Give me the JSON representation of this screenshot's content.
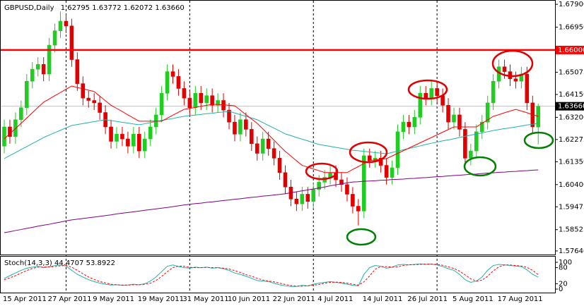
{
  "chart_data": [
    {
      "type": "candlestick",
      "title": "GBPUSD,Daily",
      "title_values": [
        "1.62795",
        "1.63772",
        "1.62072",
        "1.63660"
      ],
      "categories": [
        "15 Apr 2011",
        null,
        null,
        null,
        null,
        null,
        null,
        null,
        "27 Apr 2011",
        null,
        null,
        null,
        null,
        null,
        null,
        null,
        "9 May 2011",
        null,
        null,
        null,
        null,
        null,
        null,
        null,
        "19 May 2011",
        null,
        null,
        null,
        null,
        null,
        null,
        null,
        "31 May 2011",
        null,
        null,
        null,
        null,
        null,
        null,
        null,
        "10 Jun 2011",
        null,
        null,
        null,
        null,
        null,
        null,
        null,
        "22 Jun 2011",
        null,
        null,
        null,
        null,
        null,
        null,
        null,
        "4 Jul 2011",
        null,
        null,
        null,
        null,
        null,
        null,
        null,
        "14 Jul 2011",
        null,
        null,
        null,
        null,
        null,
        null,
        null,
        "26 Jul 2011",
        null,
        null,
        null,
        null,
        null,
        null,
        null,
        "5 Aug 2011",
        null,
        null,
        null,
        null,
        null,
        null,
        null,
        "17 Aug 2011",
        null,
        null,
        null,
        null,
        null,
        null,
        null
      ],
      "open": [
        1.62,
        1.628,
        1.624,
        1.631,
        1.636,
        1.647,
        1.652,
        1.654,
        1.65,
        1.662,
        1.668,
        1.672,
        1.67,
        1.656,
        1.646,
        1.64,
        1.639,
        1.638,
        1.634,
        1.628,
        1.622,
        1.625,
        1.623,
        1.62,
        1.625,
        1.618,
        1.623,
        1.628,
        1.633,
        1.642,
        1.651,
        1.649,
        1.644,
        1.64,
        1.636,
        1.642,
        1.638,
        1.641,
        1.637,
        1.639,
        1.635,
        1.63,
        1.625,
        1.631,
        1.627,
        1.621,
        1.617,
        1.623,
        1.619,
        1.615,
        1.609,
        1.603,
        1.598,
        1.596,
        1.6,
        1.597,
        1.602,
        1.605,
        1.607,
        1.609,
        1.606,
        1.604,
        1.6,
        1.595,
        1.593,
        1.616,
        1.614,
        1.615,
        1.612,
        1.607,
        1.611,
        1.626,
        1.63,
        1.628,
        1.632,
        1.642,
        1.64,
        1.644,
        1.641,
        1.637,
        1.63,
        1.633,
        1.627,
        1.615,
        1.618,
        1.626,
        1.63,
        1.638,
        1.647,
        1.653,
        1.651,
        1.648,
        1.647,
        1.65,
        1.638,
        1.62795
      ],
      "high": [
        1.631,
        1.631,
        1.634,
        1.639,
        1.65,
        1.655,
        1.657,
        1.657,
        1.665,
        1.671,
        1.676,
        1.675,
        1.673,
        1.659,
        1.649,
        1.643,
        1.642,
        1.641,
        1.637,
        1.631,
        1.628,
        1.628,
        1.626,
        1.628,
        1.628,
        1.626,
        1.631,
        1.636,
        1.645,
        1.654,
        1.654,
        1.652,
        1.647,
        1.643,
        1.645,
        1.645,
        1.644,
        1.644,
        1.642,
        1.642,
        1.638,
        1.633,
        1.634,
        1.634,
        1.63,
        1.624,
        1.626,
        1.626,
        1.622,
        1.618,
        1.612,
        1.606,
        1.601,
        1.603,
        1.603,
        1.605,
        1.608,
        1.61,
        1.612,
        1.612,
        1.609,
        1.607,
        1.603,
        1.598,
        1.619,
        1.619,
        1.618,
        1.618,
        1.615,
        1.614,
        1.629,
        1.633,
        1.633,
        1.635,
        1.645,
        1.645,
        1.647,
        1.647,
        1.644,
        1.64,
        1.636,
        1.636,
        1.63,
        1.621,
        1.629,
        1.633,
        1.641,
        1.65,
        1.656,
        1.656,
        1.654,
        1.651,
        1.653,
        1.653,
        1.641,
        1.63772
      ],
      "low": [
        1.617,
        1.621,
        1.621,
        1.628,
        1.633,
        1.644,
        1.649,
        1.647,
        1.647,
        1.659,
        1.665,
        1.667,
        1.653,
        1.643,
        1.637,
        1.636,
        1.635,
        1.631,
        1.625,
        1.619,
        1.619,
        1.62,
        1.617,
        1.617,
        1.615,
        1.615,
        1.62,
        1.625,
        1.63,
        1.639,
        1.646,
        1.641,
        1.637,
        1.633,
        1.633,
        1.635,
        1.635,
        1.634,
        1.634,
        1.632,
        1.627,
        1.622,
        1.622,
        1.624,
        1.618,
        1.614,
        1.614,
        1.616,
        1.612,
        1.606,
        1.6,
        1.595,
        1.593,
        1.593,
        1.594,
        1.594,
        1.599,
        1.602,
        1.604,
        1.603,
        1.601,
        1.597,
        1.592,
        1.587,
        1.59,
        1.611,
        1.611,
        1.609,
        1.604,
        1.604,
        1.608,
        1.623,
        1.625,
        1.625,
        1.629,
        1.637,
        1.637,
        1.638,
        1.634,
        1.627,
        1.627,
        1.624,
        1.612,
        1.612,
        1.615,
        1.623,
        1.627,
        1.635,
        1.644,
        1.648,
        1.645,
        1.644,
        1.644,
        1.635,
        1.625,
        1.62072
      ],
      "close": [
        1.628,
        1.624,
        1.631,
        1.636,
        1.647,
        1.652,
        1.654,
        1.65,
        1.662,
        1.668,
        1.672,
        1.67,
        1.656,
        1.646,
        1.64,
        1.639,
        1.638,
        1.634,
        1.628,
        1.622,
        1.625,
        1.623,
        1.62,
        1.625,
        1.618,
        1.623,
        1.628,
        1.633,
        1.642,
        1.651,
        1.649,
        1.644,
        1.64,
        1.636,
        1.642,
        1.638,
        1.641,
        1.637,
        1.639,
        1.635,
        1.63,
        1.625,
        1.631,
        1.627,
        1.621,
        1.617,
        1.623,
        1.619,
        1.615,
        1.609,
        1.603,
        1.598,
        1.596,
        1.6,
        1.597,
        1.602,
        1.605,
        1.607,
        1.609,
        1.606,
        1.604,
        1.6,
        1.595,
        1.593,
        1.616,
        1.614,
        1.615,
        1.612,
        1.607,
        1.611,
        1.626,
        1.63,
        1.628,
        1.632,
        1.642,
        1.64,
        1.644,
        1.641,
        1.637,
        1.63,
        1.633,
        1.627,
        1.615,
        1.618,
        1.626,
        1.63,
        1.638,
        1.647,
        1.653,
        1.651,
        1.648,
        1.647,
        1.65,
        1.638,
        1.628,
        1.6366
      ],
      "up_color": "#22cc22",
      "down_color": "#e00000",
      "lines": [
        {
          "color": "#800080",
          "values": [
            1.584,
            1.5844,
            1.5849,
            1.5853,
            1.5858,
            1.5862,
            1.5867,
            1.5871,
            1.5875,
            1.588,
            1.5884,
            1.5889,
            1.5893,
            1.5896,
            1.5899,
            1.5902,
            1.5905,
            1.5908,
            1.5911,
            1.5914,
            1.5918,
            1.5921,
            1.5924,
            1.5927,
            1.593,
            1.5933,
            1.5936,
            1.5939,
            1.5942,
            1.5945,
            1.5948,
            1.5952,
            1.5955,
            1.5958,
            1.5961,
            1.5963,
            1.5966,
            1.5968,
            1.5971,
            1.5974,
            1.5976,
            1.5979,
            1.5981,
            1.5984,
            1.5987,
            1.5989,
            1.5992,
            1.5994,
            1.5997,
            1.5999,
            1.6002,
            1.6006,
            1.601,
            1.6014,
            1.6018,
            1.6022,
            1.6026,
            1.603,
            1.6035,
            1.6039,
            1.6043,
            1.6047,
            1.6051,
            1.6052,
            1.6054,
            1.6055,
            1.6056,
            1.6058,
            1.6059,
            1.6061,
            1.6062,
            1.6063,
            1.6065,
            1.6066,
            1.6068,
            1.6069,
            1.6071,
            1.6073,
            1.6074,
            1.6076,
            1.6078,
            1.6079,
            1.6081,
            1.6083,
            1.6084,
            1.6086,
            1.6088,
            1.6089,
            1.6091,
            1.6092,
            1.6094,
            1.6095,
            1.6097,
            1.6098,
            1.61,
            1.6101
          ]
        },
        {
          "color": "#20b2aa",
          "values": [
            1.6148,
            1.6161,
            1.6173,
            1.6186,
            1.6198,
            1.6211,
            1.6223,
            1.6236,
            1.6246,
            1.6256,
            1.6266,
            1.6276,
            1.6286,
            1.629,
            1.6294,
            1.6298,
            1.6302,
            1.6306,
            1.631,
            1.6306,
            1.6303,
            1.6299,
            1.6296,
            1.6292,
            1.6289,
            1.6293,
            1.6298,
            1.6302,
            1.6307,
            1.6311,
            1.6315,
            1.632,
            1.6324,
            1.6327,
            1.6329,
            1.6332,
            1.6335,
            1.6337,
            1.634,
            1.6342,
            1.6345,
            1.6338,
            1.6331,
            1.6324,
            1.6317,
            1.631,
            1.6298,
            1.6286,
            1.6275,
            1.6263,
            1.6251,
            1.6244,
            1.6236,
            1.6229,
            1.6222,
            1.6214,
            1.6207,
            1.6203,
            1.6199,
            1.6195,
            1.6191,
            1.6187,
            1.6183,
            1.6181,
            1.6178,
            1.6176,
            1.6173,
            1.6171,
            1.6168,
            1.6174,
            1.6179,
            1.6185,
            1.619,
            1.6196,
            1.6201,
            1.6207,
            1.6212,
            1.6217,
            1.6222,
            1.6226,
            1.6231,
            1.6236,
            1.6241,
            1.6246,
            1.625,
            1.6255,
            1.626,
            1.6265,
            1.6269,
            1.6273,
            1.6276,
            1.628,
            1.6284,
            1.6288,
            1.6291,
            1.6295
          ]
        },
        {
          "color": "#ff0000",
          "values": [
            1.623,
            1.6252,
            1.6273,
            1.6295,
            1.6317,
            1.6339,
            1.6361,
            1.6383,
            1.6396,
            1.641,
            1.6423,
            1.6437,
            1.645,
            1.6444,
            1.6439,
            1.6433,
            1.6427,
            1.6408,
            1.6389,
            1.637,
            1.6357,
            1.6344,
            1.633,
            1.6317,
            1.6304,
            1.6304,
            1.6304,
            1.6304,
            1.6304,
            1.6316,
            1.6329,
            1.6341,
            1.6353,
            1.6357,
            1.6361,
            1.6366,
            1.637,
            1.6374,
            1.6373,
            1.6372,
            1.637,
            1.6368,
            1.635,
            1.6331,
            1.6313,
            1.6295,
            1.6272,
            1.6248,
            1.6225,
            1.6201,
            1.6178,
            1.6159,
            1.6139,
            1.612,
            1.6113,
            1.6105,
            1.6098,
            1.609,
            1.609,
            1.609,
            1.609,
            1.609,
            1.6103,
            1.6115,
            1.6128,
            1.614,
            1.6143,
            1.6145,
            1.6148,
            1.6159,
            1.617,
            1.6181,
            1.6192,
            1.6203,
            1.6214,
            1.6225,
            1.6236,
            1.6247,
            1.6258,
            1.6269,
            1.628,
            1.628,
            1.628,
            1.628,
            1.628,
            1.6295,
            1.6309,
            1.6324,
            1.6331,
            1.6339,
            1.6346,
            1.6353,
            1.6346,
            1.6339,
            1.6331,
            1.6324
          ]
        }
      ],
      "ylim": [
        1.5752,
        1.6808
      ],
      "yticks": [
        {
          "value": 1.679,
          "label": "1.67900"
        },
        {
          "value": 1.6695,
          "label": "1.66950"
        },
        {
          "value": 1.65075,
          "label": "1.65075"
        },
        {
          "value": 1.6415,
          "label": "1.64150"
        },
        {
          "value": 1.632,
          "label": "1.63200"
        },
        {
          "value": 1.62275,
          "label": "1.62275"
        },
        {
          "value": 1.6135,
          "label": "1.61350"
        },
        {
          "value": 1.604,
          "label": "1.60400"
        },
        {
          "value": 1.59475,
          "label": "1.59475"
        },
        {
          "value": 1.58525,
          "label": "1.58525"
        },
        {
          "value": 1.5764,
          "label": "1.57640"
        }
      ],
      "hlines": [
        {
          "value": 1.66,
          "label": "1.66000",
          "color": "#ff0000"
        }
      ],
      "price_line": {
        "value": 1.6366,
        "label": "1.63660",
        "color": "#c0c0c0"
      }
    },
    {
      "type": "line",
      "title": "Stoch(14,3,3)",
      "lines": [
        {
          "color": "#20b2aa",
          "dash": false,
          "values": [
            40,
            50,
            60,
            70,
            78,
            82,
            85,
            80,
            83,
            88,
            90,
            86,
            70,
            55,
            45,
            35,
            28,
            22,
            18,
            15,
            16,
            14,
            15,
            18,
            16,
            20,
            30,
            45,
            65,
            85,
            90,
            84,
            80,
            78,
            82,
            80,
            82,
            78,
            80,
            76,
            70,
            60,
            55,
            48,
            40,
            32,
            30,
            28,
            22,
            16,
            12,
            10,
            10,
            14,
            12,
            18,
            22,
            25,
            28,
            25,
            22,
            18,
            14,
            12,
            55,
            80,
            88,
            85,
            78,
            82,
            90,
            92,
            90,
            92,
            94,
            92,
            93,
            90,
            84,
            76,
            70,
            55,
            35,
            25,
            30,
            45,
            70,
            88,
            92,
            90,
            88,
            86,
            84,
            72,
            55,
            44.4707
          ]
        },
        {
          "color": "#ff0000",
          "dash": true,
          "values": [
            35,
            42,
            50,
            60,
            69,
            77,
            82,
            82,
            83,
            84,
            87,
            88,
            82,
            70,
            57,
            45,
            36,
            28,
            23,
            18,
            16,
            15,
            15,
            16,
            16,
            18,
            22,
            32,
            47,
            65,
            80,
            86,
            85,
            81,
            80,
            80,
            81,
            80,
            80,
            78,
            75,
            69,
            62,
            54,
            48,
            40,
            34,
            30,
            27,
            22,
            17,
            13,
            11,
            11,
            12,
            15,
            17,
            22,
            25,
            26,
            25,
            22,
            18,
            15,
            27,
            49,
            74,
            84,
            84,
            82,
            83,
            88,
            91,
            91,
            92,
            93,
            93,
            92,
            89,
            83,
            77,
            67,
            53,
            38,
            30,
            33,
            48,
            68,
            83,
            90,
            90,
            88,
            86,
            81,
            70,
            53.8922
          ]
        }
      ],
      "ylim": [
        0,
        100
      ],
      "yticks": [
        100,
        80,
        20,
        0
      ]
    }
  ]
}
